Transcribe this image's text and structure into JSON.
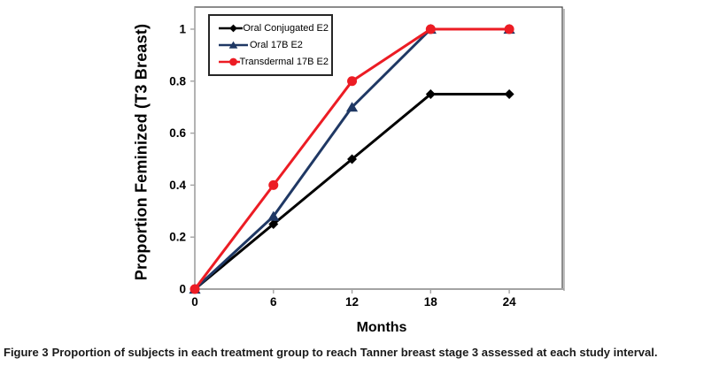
{
  "figure_caption": {
    "label": "Figure 3",
    "text": "Proportion of subjects in each treatment group to reach Tanner breast stage 3 assessed at each study interval."
  },
  "chart_data": {
    "type": "line",
    "title": "",
    "xlabel": "Months",
    "ylabel": "Proportion Feminized (T3 Breast)",
    "x": [
      0,
      6,
      12,
      18,
      24
    ],
    "x_tick_labels": [
      "0",
      "6",
      "12",
      "18",
      "24"
    ],
    "y_ticks": [
      0,
      0.2,
      0.4,
      0.6,
      0.8,
      1
    ],
    "y_tick_labels": [
      "0",
      "0.2",
      "0.4",
      "0.6",
      "0.8",
      "1"
    ],
    "xlim": [
      0,
      28.05
    ],
    "ylim": [
      0,
      1.085
    ],
    "grid": false,
    "legend_position": "inside-top-left",
    "series": [
      {
        "name": "Oral Conjugated E2",
        "marker": "diamond",
        "color": "#000000",
        "values": [
          0,
          0.25,
          0.5,
          0.75,
          0.75
        ]
      },
      {
        "name": "Oral 17B E2",
        "marker": "triangle",
        "color": "#1F3864",
        "values": [
          0,
          0.28,
          0.7,
          1,
          1
        ]
      },
      {
        "name": "Transdermal 17B E2",
        "marker": "circle",
        "color": "#EC1C24",
        "values": [
          0,
          0.4,
          0.8,
          1,
          1
        ]
      }
    ]
  },
  "style_colors": {
    "background": "#FFFFFF",
    "axis_line": "#A3A3A3",
    "plot_border": "#3F3F3F",
    "plot_shadow": "#ABABAB",
    "legend_border": "#262626",
    "tick_text": "#000000",
    "caption_text": "#1A1A1A"
  }
}
